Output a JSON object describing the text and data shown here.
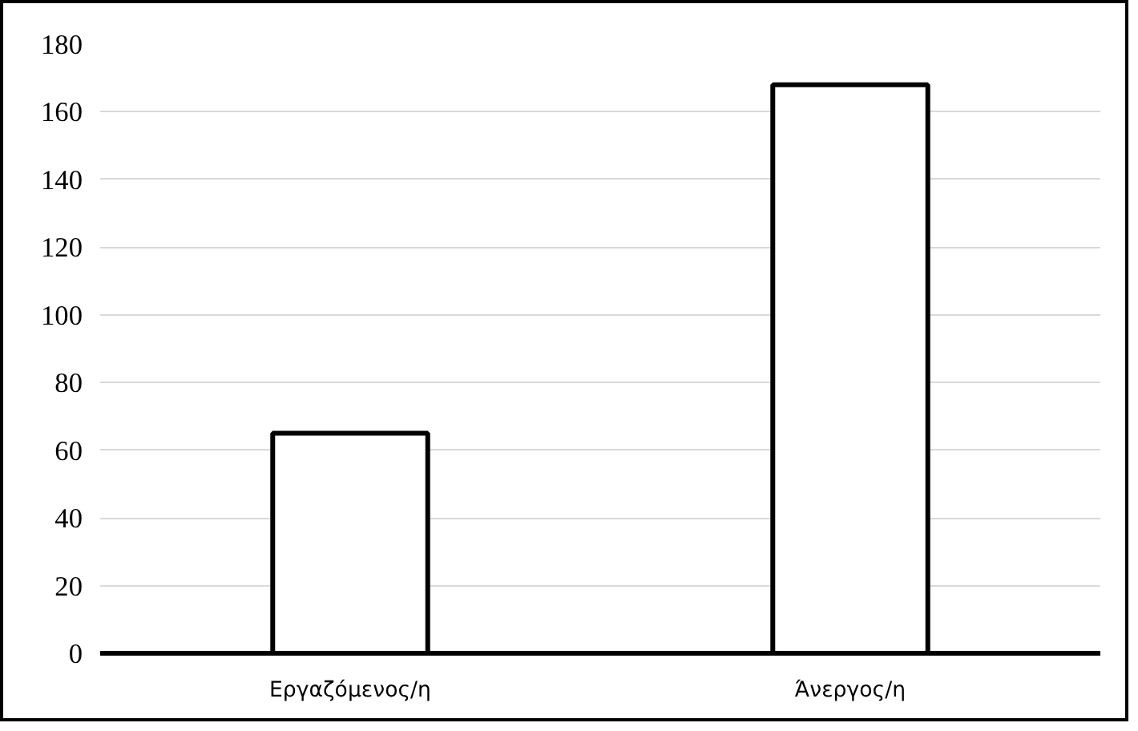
{
  "chart_data": {
    "type": "bar",
    "categories": [
      "Εργαζόμενος/η",
      "Άνεργος/η"
    ],
    "values": [
      65,
      168
    ],
    "color": "#ffffff",
    "ylim": [
      0,
      180
    ],
    "yticks": [
      0,
      20,
      40,
      60,
      80,
      100,
      120,
      140,
      160,
      180
    ],
    "grid": "y"
  }
}
